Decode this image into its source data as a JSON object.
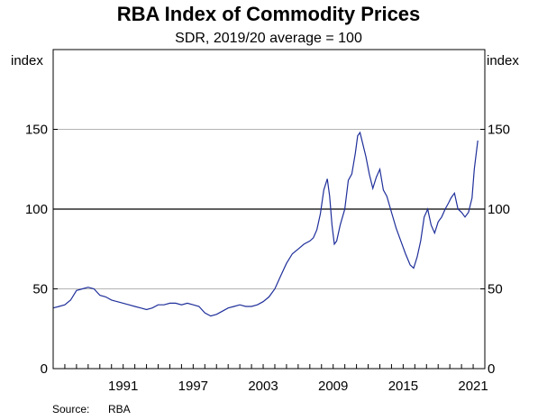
{
  "chart_data": {
    "type": "line",
    "title": "RBA Index of Commodity Prices",
    "subtitle": "SDR, 2019/20 average = 100",
    "ylabel_left": "index",
    "ylabel_right": "index",
    "ylim": [
      0,
      200
    ],
    "yticks": [
      0,
      50,
      100,
      150
    ],
    "ytick_labels": [
      "0",
      "50",
      "100",
      "150"
    ],
    "xlim": [
      1985.0,
      2022.0
    ],
    "xticks": [
      1991,
      1997,
      2003,
      2009,
      2015,
      2021
    ],
    "xtick_labels": [
      "1991",
      "1997",
      "2003",
      "2009",
      "2015",
      "2021"
    ],
    "grid": "horizontal",
    "reference_line": 100,
    "source_label": "Source:",
    "source_value": "RBA",
    "line_color": "#1f2f9a",
    "series": [
      {
        "x": [
          1985.0,
          1985.5,
          1986.0,
          1986.5,
          1987.0,
          1987.5,
          1988.0,
          1988.5,
          1989.0,
          1989.5,
          1990.0,
          1990.5,
          1991.0,
          1991.5,
          1992.0,
          1992.5,
          1993.0,
          1993.5,
          1994.0,
          1994.5,
          1995.0,
          1995.5,
          1996.0,
          1996.5,
          1997.0,
          1997.5,
          1998.0,
          1998.5,
          1999.0,
          1999.5,
          2000.0,
          2000.5,
          2001.0,
          2001.5,
          2002.0,
          2002.5,
          2003.0,
          2003.5,
          2004.0,
          2004.5,
          2005.0,
          2005.5,
          2006.0,
          2006.5,
          2007.0,
          2007.3,
          2007.6,
          2007.9,
          2008.2,
          2008.5,
          2008.7,
          2008.9,
          2009.1,
          2009.3,
          2009.6,
          2010.0,
          2010.3,
          2010.6,
          2010.9,
          2011.1,
          2011.3,
          2011.5,
          2011.8,
          2012.1,
          2012.4,
          2012.7,
          2013.0,
          2013.3,
          2013.6,
          2014.0,
          2014.4,
          2014.8,
          2015.2,
          2015.6,
          2015.9,
          2016.2,
          2016.5,
          2016.8,
          2017.1,
          2017.4,
          2017.7,
          2018.0,
          2018.3,
          2018.6,
          2018.9,
          2019.1,
          2019.4,
          2019.7,
          2020.0,
          2020.3,
          2020.6,
          2020.9,
          2021.1,
          2021.4
        ],
        "values": [
          38,
          39,
          40,
          43,
          49,
          50,
          51,
          50,
          46,
          45,
          43,
          42,
          41,
          40,
          39,
          38,
          37,
          38,
          40,
          40,
          41,
          41,
          40,
          41,
          40,
          39,
          35,
          33,
          34,
          36,
          38,
          39,
          40,
          39,
          39,
          40,
          42,
          45,
          50,
          58,
          66,
          72,
          75,
          78,
          80,
          82,
          87,
          97,
          112,
          119,
          108,
          90,
          78,
          80,
          90,
          100,
          118,
          122,
          135,
          146,
          148,
          142,
          133,
          122,
          113,
          120,
          125,
          112,
          108,
          98,
          88,
          80,
          72,
          65,
          63,
          70,
          80,
          95,
          100,
          90,
          85,
          92,
          95,
          100,
          104,
          107,
          110,
          100,
          98,
          95,
          98,
          107,
          125,
          143
        ]
      }
    ]
  }
}
